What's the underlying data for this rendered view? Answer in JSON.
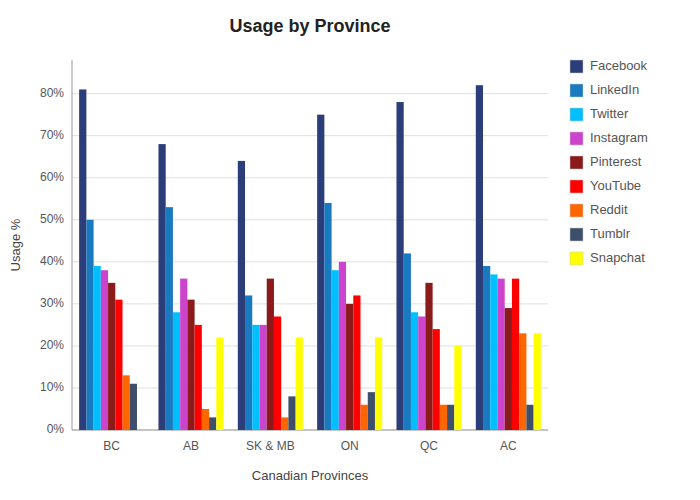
{
  "chart_data": {
    "type": "bar",
    "title": "Usage by Province",
    "xlabel": "Canadian Provinces",
    "ylabel": "Usage %",
    "categories": [
      "BC",
      "AB",
      "SK & MB",
      "ON",
      "QC",
      "AC"
    ],
    "series": [
      {
        "name": "Facebook",
        "color": "#2c3e7a",
        "values": [
          81,
          68,
          64,
          75,
          78,
          82
        ]
      },
      {
        "name": "LinkedIn",
        "color": "#1a7abf",
        "values": [
          50,
          53,
          32,
          54,
          42,
          39
        ]
      },
      {
        "name": "Twitter",
        "color": "#00bfff",
        "values": [
          39,
          28,
          25,
          38,
          28,
          37
        ]
      },
      {
        "name": "Instagram",
        "color": "#cc44cc",
        "values": [
          38,
          36,
          25,
          40,
          27,
          36
        ]
      },
      {
        "name": "Pinterest",
        "color": "#8b1a1a",
        "values": [
          35,
          31,
          36,
          30,
          35,
          29
        ]
      },
      {
        "name": "YouTube",
        "color": "#ff0000",
        "values": [
          31,
          25,
          27,
          32,
          24,
          36
        ]
      },
      {
        "name": "Reddit",
        "color": "#ff6600",
        "values": [
          13,
          5,
          3,
          6,
          6,
          23
        ]
      },
      {
        "name": "Tumblr",
        "color": "#3d4f6b",
        "values": [
          11,
          3,
          8,
          9,
          6,
          6
        ]
      },
      {
        "name": "Snapchat",
        "color": "#ffff00",
        "values": [
          0,
          22,
          22,
          22,
          20,
          23
        ]
      }
    ],
    "ylim": [
      0,
      88
    ],
    "yticks": [
      {
        "value": 0,
        "label": "0%"
      },
      {
        "value": 10,
        "label": "10%"
      },
      {
        "value": 20,
        "label": "20%"
      },
      {
        "value": 30,
        "label": "30%"
      },
      {
        "value": 40,
        "label": "40%"
      },
      {
        "value": 50,
        "label": "50%"
      },
      {
        "value": 60,
        "label": "60%"
      },
      {
        "value": 70,
        "label": "70%"
      },
      {
        "value": 80,
        "label": "80%"
      }
    ],
    "grid": true,
    "legend": "right"
  }
}
